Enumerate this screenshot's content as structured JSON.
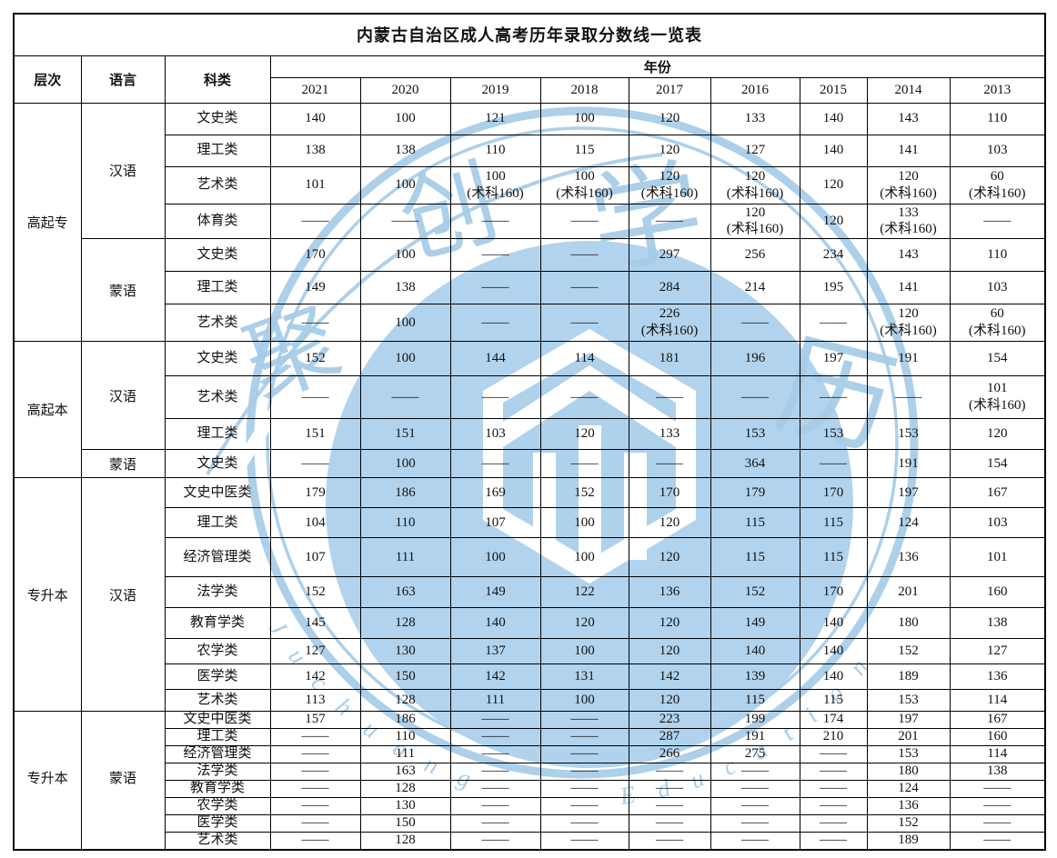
{
  "page": {
    "background": "#ffffff"
  },
  "colors": {
    "border": "#000000",
    "text": "#111111",
    "watermark_blue": "#a5cbe8",
    "watermark_disk": "#aed1ec"
  },
  "watermark": {
    "chars": [
      "聚",
      "创",
      "学",
      "历"
    ],
    "arc_text": [
      "Juchuang",
      "Education"
    ]
  },
  "table": {
    "title": "内蒙古自治区成人高考历年录取分数线一览表",
    "col_headers": {
      "level": "层次",
      "language": "语言",
      "category": "科类",
      "year_group": "年份"
    },
    "years": [
      "2021",
      "2020",
      "2019",
      "2018",
      "2017",
      "2016",
      "2015",
      "2014",
      "2013"
    ],
    "groups": [
      {
        "level": "高起专",
        "subgroups": [
          {
            "language": "汉语",
            "rows": [
              {
                "category": "文史类",
                "values": [
                  "140",
                  "100",
                  "121",
                  "100",
                  "120",
                  "133",
                  "140",
                  "143",
                  "110"
                ]
              },
              {
                "category": "理工类",
                "values": [
                  "138",
                  "138",
                  "110",
                  "115",
                  "120",
                  "127",
                  "140",
                  "141",
                  "103"
                ]
              },
              {
                "category": "艺术类",
                "values": [
                  "101",
                  "100",
                  "100\n(术科160)",
                  "100\n(术科160)",
                  "120\n(术科160)",
                  "120\n(术科160)",
                  "120",
                  "120\n(术科160)",
                  "60\n(术科160)"
                ]
              },
              {
                "category": "体育类",
                "values": [
                  "——",
                  "——",
                  "——",
                  "——",
                  "——",
                  "120\n(术科160)",
                  "120",
                  "133\n(术科160)",
                  "——"
                ]
              }
            ]
          },
          {
            "language": "蒙语",
            "rows": [
              {
                "category": "文史类",
                "values": [
                  "170",
                  "100",
                  "——",
                  "——",
                  "297",
                  "256",
                  "234",
                  "143",
                  "110"
                ]
              },
              {
                "category": "理工类",
                "values": [
                  "149",
                  "138",
                  "——",
                  "——",
                  "284",
                  "214",
                  "195",
                  "141",
                  "103"
                ]
              },
              {
                "category": "艺术类",
                "values": [
                  "——",
                  "100",
                  "——",
                  "——",
                  "226\n(术科160)",
                  "——",
                  "——",
                  "120\n(术科160)",
                  "60\n(术科160)"
                ]
              }
            ]
          }
        ]
      },
      {
        "level": "高起本",
        "subgroups": [
          {
            "language": "汉语",
            "rows": [
              {
                "category": "文史类",
                "values": [
                  "152",
                  "100",
                  "144",
                  "114",
                  "181",
                  "196",
                  "197",
                  "191",
                  "154"
                ]
              },
              {
                "category": "艺术类",
                "values": [
                  "——",
                  "——",
                  "——",
                  "——",
                  "——",
                  "——",
                  "——",
                  "——",
                  "101\n(术科160)"
                ]
              },
              {
                "category": "理工类",
                "values": [
                  "151",
                  "151",
                  "103",
                  "120",
                  "133",
                  "153",
                  "153",
                  "153",
                  "120"
                ]
              }
            ]
          },
          {
            "language": "蒙语",
            "rows": [
              {
                "category": "文史类",
                "values": [
                  "——",
                  "100",
                  "——",
                  "——",
                  "——",
                  "364",
                  "——",
                  "191",
                  "154"
                ]
              }
            ]
          }
        ]
      },
      {
        "level": "专升本",
        "subgroups": [
          {
            "language": "汉语",
            "rows": [
              {
                "category": "文史中医类",
                "values": [
                  "179",
                  "186",
                  "169",
                  "152",
                  "170",
                  "179",
                  "170",
                  "197",
                  "167"
                ]
              },
              {
                "category": "理工类",
                "values": [
                  "104",
                  "110",
                  "107",
                  "100",
                  "120",
                  "115",
                  "115",
                  "124",
                  "103"
                ]
              },
              {
                "category": "经济管理类",
                "values": [
                  "107",
                  "111",
                  "100",
                  "100",
                  "120",
                  "115",
                  "115",
                  "136",
                  "101"
                ]
              },
              {
                "category": "法学类",
                "values": [
                  "152",
                  "163",
                  "149",
                  "122",
                  "136",
                  "152",
                  "170",
                  "201",
                  "160"
                ]
              },
              {
                "category": "教育学类",
                "values": [
                  "145",
                  "128",
                  "140",
                  "120",
                  "120",
                  "149",
                  "140",
                  "180",
                  "138"
                ]
              },
              {
                "category": "农学类",
                "values": [
                  "127",
                  "130",
                  "137",
                  "100",
                  "120",
                  "140",
                  "140",
                  "152",
                  "127"
                ]
              },
              {
                "category": "医学类",
                "values": [
                  "142",
                  "150",
                  "142",
                  "131",
                  "142",
                  "139",
                  "140",
                  "189",
                  "136"
                ]
              },
              {
                "category": "艺术类",
                "values": [
                  "113",
                  "128",
                  "111",
                  "100",
                  "120",
                  "115",
                  "115",
                  "153",
                  "114"
                ]
              }
            ]
          }
        ]
      },
      {
        "level": "专升本",
        "subgroups": [
          {
            "language": "蒙语",
            "rows": [
              {
                "category": "文史中医类",
                "values": [
                  "157",
                  "186",
                  "——",
                  "——",
                  "223",
                  "199",
                  "174",
                  "197",
                  "167"
                ]
              },
              {
                "category": "理工类",
                "values": [
                  "——",
                  "110",
                  "——",
                  "——",
                  "287",
                  "191",
                  "210",
                  "201",
                  "160"
                ]
              },
              {
                "category": "经济管理类",
                "values": [
                  "——",
                  "111",
                  "——",
                  "——",
                  "266",
                  "275",
                  "——",
                  "153",
                  "114"
                ]
              },
              {
                "category": "法学类",
                "values": [
                  "——",
                  "163",
                  "——",
                  "——",
                  "——",
                  "——",
                  "——",
                  "180",
                  "138"
                ]
              },
              {
                "category": "教育学类",
                "values": [
                  "——",
                  "128",
                  "——",
                  "——",
                  "——",
                  "——",
                  "——",
                  "124",
                  "——"
                ]
              },
              {
                "category": "农学类",
                "values": [
                  "——",
                  "130",
                  "——",
                  "——",
                  "——",
                  "——",
                  "——",
                  "136",
                  "——"
                ]
              },
              {
                "category": "医学类",
                "values": [
                  "——",
                  "150",
                  "——",
                  "——",
                  "——",
                  "——",
                  "——",
                  "152",
                  "——"
                ]
              },
              {
                "category": "艺术类",
                "values": [
                  "——",
                  "128",
                  "——",
                  "——",
                  "——",
                  "——",
                  "——",
                  "189",
                  "——"
                ]
              }
            ]
          }
        ]
      }
    ]
  }
}
